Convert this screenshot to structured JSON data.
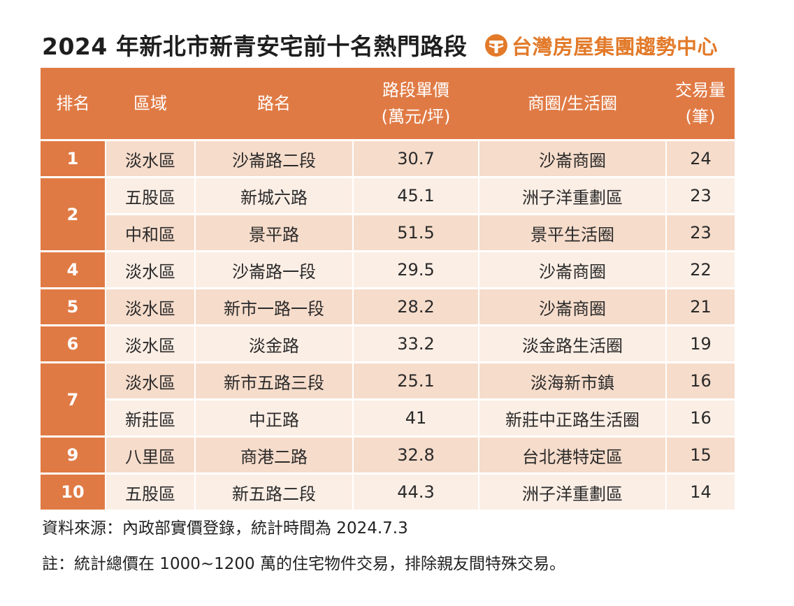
{
  "title": "2024 年新北市新青安宅前十名熱門路段",
  "brand": {
    "name": "台灣房屋集團趨勢中心",
    "icon": "taiwan-realty-logo-icon",
    "color": "#e27a2a"
  },
  "colors": {
    "header_bg": "#e07a44",
    "row_dark": "#f6dccb",
    "row_light": "#fbeee5"
  },
  "table": {
    "headers": {
      "rank": "排名",
      "district": "區域",
      "road": "路名",
      "price_line1": "路段單價",
      "price_line2": "(萬元/坪)",
      "area": "商圈/生活圈",
      "volume_line1": "交易量",
      "volume_line2": "(筆)"
    },
    "rows": [
      {
        "rank": "1",
        "district": "淡水區",
        "road": "沙崙路二段",
        "price": "30.7",
        "area": "沙崙商圈",
        "volume": "24"
      },
      {
        "rank": "2",
        "district": "五股區",
        "road": "新城六路",
        "price": "45.1",
        "area": "洲子洋重劃區",
        "volume": "23"
      },
      {
        "rank": "2",
        "district": "中和區",
        "road": "景平路",
        "price": "51.5",
        "area": "景平生活圈",
        "volume": "23"
      },
      {
        "rank": "4",
        "district": "淡水區",
        "road": "沙崙路一段",
        "price": "29.5",
        "area": "沙崙商圈",
        "volume": "22"
      },
      {
        "rank": "5",
        "district": "淡水區",
        "road": "新市一路一段",
        "price": "28.2",
        "area": "沙崙商圈",
        "volume": "21"
      },
      {
        "rank": "6",
        "district": "淡水區",
        "road": "淡金路",
        "price": "33.2",
        "area": "淡金路生活圈",
        "volume": "19"
      },
      {
        "rank": "7",
        "district": "淡水區",
        "road": "新市五路三段",
        "price": "25.1",
        "area": "淡海新市鎮",
        "volume": "16"
      },
      {
        "rank": "7",
        "district": "新莊區",
        "road": "中正路",
        "price": "41",
        "area": "新莊中正路生活圈",
        "volume": "16"
      },
      {
        "rank": "9",
        "district": "八里區",
        "road": "商港二路",
        "price": "32.8",
        "area": "台北港特定區",
        "volume": "15"
      },
      {
        "rank": "10",
        "district": "五股區",
        "road": "新五路二段",
        "price": "44.3",
        "area": "洲子洋重劃區",
        "volume": "14"
      }
    ]
  },
  "notes": {
    "source": "資料來源：內政部實價登錄，統計時間為 2024.7.3",
    "remark": "註：統計總價在 1000~1200 萬的住宅物件交易，排除親友間特殊交易。"
  }
}
